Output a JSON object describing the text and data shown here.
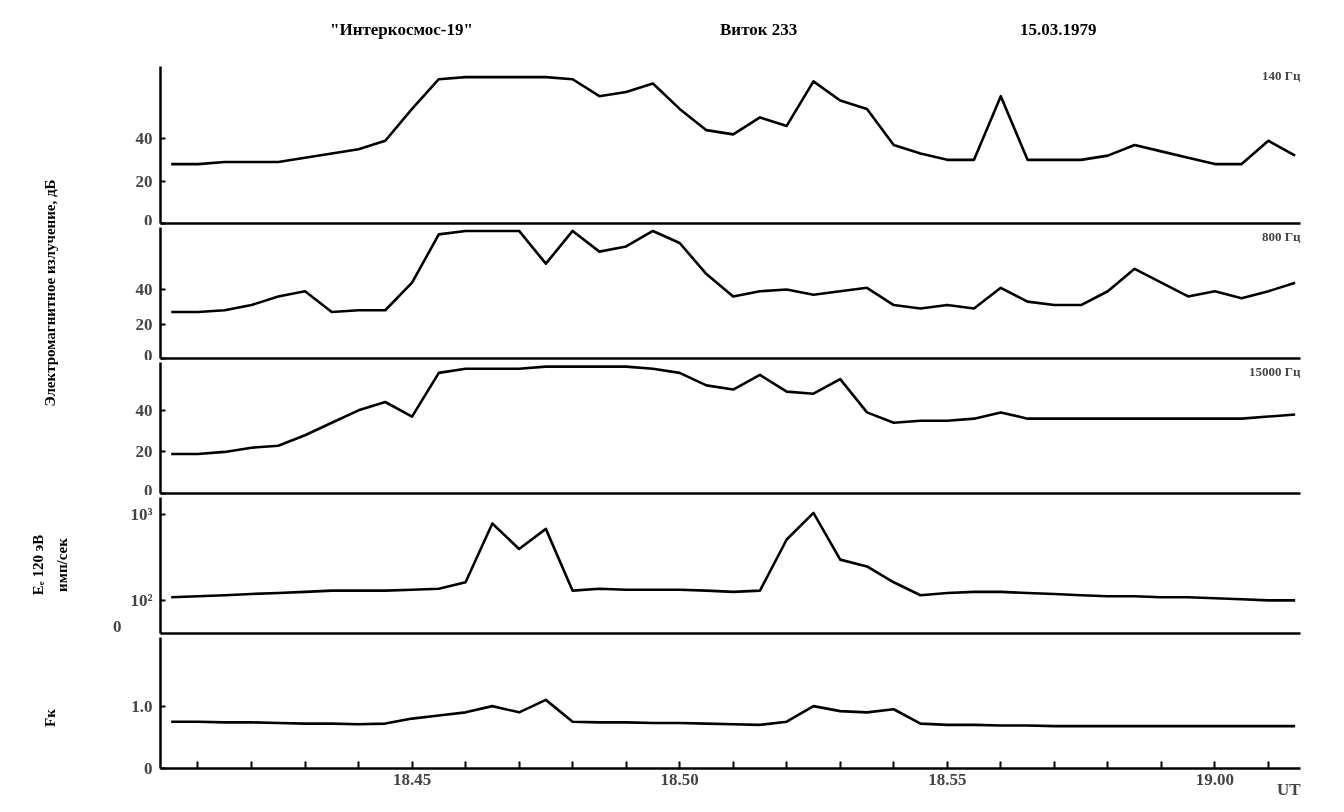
{
  "chart_data": [
    {
      "type": "line",
      "title": "\"Интеркосмос-19\"",
      "annotations": [
        "Виток 233",
        "15.03.1979"
      ],
      "tick_labels": "y",
      "x": [
        "1979-03-15T18:40:30",
        "1979-03-15T18:41",
        "1979-03-15T18:41:30",
        "1979-03-15T18:42",
        "1979-03-15T18:42:30",
        "1979-03-15T18:43",
        "1979-03-15T18:43:30",
        "1979-03-15T18:44",
        "1979-03-15T18:44:30",
        "1979-03-15T18:45",
        "1979-03-15T18:45:30",
        "1979-03-15T18:46",
        "1979-03-15T18:46:30",
        "1979-03-15T18:47",
        "1979-03-15T18:47:30",
        "1979-03-15T18:48",
        "1979-03-15T18:48:30",
        "1979-03-15T18:49",
        "1979-03-15T18:49:30",
        "1979-03-15T18:50",
        "1979-03-15T18:50:30",
        "1979-03-15T18:51",
        "1979-03-15T18:51:30",
        "1979-03-15T18:52",
        "1979-03-15T18:52:30",
        "1979-03-15T18:53",
        "1979-03-15T18:53:30",
        "1979-03-15T18:54",
        "1979-03-15T18:54:30",
        "1979-03-15T18:55",
        "1979-03-15T18:55:30",
        "1979-03-15T18:56",
        "1979-03-15T18:56:30",
        "1979-03-15T18:57",
        "1979-03-15T18:57:30",
        "1979-03-15T18:58",
        "1979-03-15T18:58:30",
        "1979-03-15T18:59",
        "1979-03-15T18:59:30",
        "1979-03-15T19:00",
        "1979-03-15T19:00:30",
        "1979-03-15T19:01",
        "1979-03-15T19:01:30"
      ],
      "xlim": [
        "1979-03-15T18:40:18",
        "1979-03-15T19:01:36"
      ],
      "ylim": [
        0,
        74
      ],
      "yticks": [
        0,
        20,
        40
      ],
      "series": [
        {
          "name": "140 Гц",
          "color": "#000000",
          "values": [
            28,
            28,
            29,
            29,
            29,
            31,
            33,
            35,
            39,
            54,
            68,
            69,
            69,
            69,
            69,
            68,
            60,
            62,
            66,
            54,
            44,
            42,
            50,
            46,
            67,
            58,
            54,
            37,
            33,
            30,
            30,
            60,
            30,
            30,
            30,
            32,
            37,
            34,
            31,
            28,
            28,
            39,
            32
          ]
        }
      ]
    },
    {
      "type": "line",
      "ylabel": "Электромагнитное излучение, дБ",
      "tick_labels": "y",
      "x": [
        "1979-03-15T18:40:30",
        "1979-03-15T18:41",
        "1979-03-15T18:41:30",
        "1979-03-15T18:42",
        "1979-03-15T18:42:30",
        "1979-03-15T18:43",
        "1979-03-15T18:43:30",
        "1979-03-15T18:44",
        "1979-03-15T18:44:30",
        "1979-03-15T18:45",
        "1979-03-15T18:45:30",
        "1979-03-15T18:46",
        "1979-03-15T18:46:30",
        "1979-03-15T18:47",
        "1979-03-15T18:47:30",
        "1979-03-15T18:48",
        "1979-03-15T18:48:30",
        "1979-03-15T18:49",
        "1979-03-15T18:49:30",
        "1979-03-15T18:50",
        "1979-03-15T18:50:30",
        "1979-03-15T18:51",
        "1979-03-15T18:51:30",
        "1979-03-15T18:52",
        "1979-03-15T18:52:30",
        "1979-03-15T18:53",
        "1979-03-15T18:53:30",
        "1979-03-15T18:54",
        "1979-03-15T18:54:30",
        "1979-03-15T18:55",
        "1979-03-15T18:55:30",
        "1979-03-15T18:56",
        "1979-03-15T18:56:30",
        "1979-03-15T18:57",
        "1979-03-15T18:57:30",
        "1979-03-15T18:58",
        "1979-03-15T18:58:30",
        "1979-03-15T18:59",
        "1979-03-15T18:59:30",
        "1979-03-15T19:00",
        "1979-03-15T19:00:30",
        "1979-03-15T19:01",
        "1979-03-15T19:01:30"
      ],
      "xlim": [
        "1979-03-15T18:40:18",
        "1979-03-15T19:01:36"
      ],
      "ylim": [
        0,
        76
      ],
      "yticks": [
        0,
        20,
        40
      ],
      "series": [
        {
          "name": "800 Гц",
          "color": "#000000",
          "values": [
            27,
            27,
            28,
            31,
            36,
            39,
            27,
            28,
            28,
            44,
            72,
            74,
            74,
            74,
            55,
            74,
            62,
            65,
            74,
            67,
            49,
            36,
            39,
            40,
            37,
            39,
            41,
            31,
            29,
            31,
            29,
            41,
            33,
            31,
            31,
            39,
            52,
            44,
            36,
            39,
            35,
            39,
            44
          ]
        }
      ]
    },
    {
      "type": "line",
      "tick_labels": "y",
      "x": [
        "1979-03-15T18:40:30",
        "1979-03-15T18:41",
        "1979-03-15T18:41:30",
        "1979-03-15T18:42",
        "1979-03-15T18:42:30",
        "1979-03-15T18:43",
        "1979-03-15T18:43:30",
        "1979-03-15T18:44",
        "1979-03-15T18:44:30",
        "1979-03-15T18:45",
        "1979-03-15T18:45:30",
        "1979-03-15T18:46",
        "1979-03-15T18:46:30",
        "1979-03-15T18:47",
        "1979-03-15T18:47:30",
        "1979-03-15T18:48",
        "1979-03-15T18:48:30",
        "1979-03-15T18:49",
        "1979-03-15T18:49:30",
        "1979-03-15T18:50",
        "1979-03-15T18:50:30",
        "1979-03-15T18:51",
        "1979-03-15T18:51:30",
        "1979-03-15T18:52",
        "1979-03-15T18:52:30",
        "1979-03-15T18:53",
        "1979-03-15T18:53:30",
        "1979-03-15T18:54",
        "1979-03-15T18:54:30",
        "1979-03-15T18:55",
        "1979-03-15T18:55:30",
        "1979-03-15T18:56",
        "1979-03-15T18:56:30",
        "1979-03-15T18:57",
        "1979-03-15T18:57:30",
        "1979-03-15T18:58",
        "1979-03-15T18:58:30",
        "1979-03-15T18:59",
        "1979-03-15T18:59:30",
        "1979-03-15T19:00",
        "1979-03-15T19:00:30",
        "1979-03-15T19:01",
        "1979-03-15T19:01:30"
      ],
      "xlim": [
        "1979-03-15T18:40:18",
        "1979-03-15T19:01:36"
      ],
      "ylim": [
        0,
        63
      ],
      "yticks": [
        0,
        20,
        40
      ],
      "series": [
        {
          "name": "15000 Гц",
          "color": "#000000",
          "values": [
            19,
            19,
            20,
            22,
            23,
            28,
            34,
            40,
            44,
            37,
            58,
            60,
            60,
            60,
            61,
            61,
            61,
            61,
            60,
            58,
            52,
            50,
            57,
            49,
            48,
            55,
            39,
            34,
            35,
            35,
            36,
            39,
            36,
            36,
            36,
            36,
            36,
            36,
            36,
            36,
            36,
            37,
            38
          ]
        }
      ]
    },
    {
      "type": "line",
      "ylabel": "Eₑ 120 эВ\nимп/сек",
      "tick_labels": "y",
      "log": "y",
      "x": [
        "1979-03-15T18:40:30",
        "1979-03-15T18:41",
        "1979-03-15T18:41:30",
        "1979-03-15T18:42",
        "1979-03-15T18:42:30",
        "1979-03-15T18:43",
        "1979-03-15T18:43:30",
        "1979-03-15T18:44",
        "1979-03-15T18:44:30",
        "1979-03-15T18:45",
        "1979-03-15T18:45:30",
        "1979-03-15T18:46",
        "1979-03-15T18:46:30",
        "1979-03-15T18:47",
        "1979-03-15T18:47:30",
        "1979-03-15T18:48",
        "1979-03-15T18:48:30",
        "1979-03-15T18:49",
        "1979-03-15T18:49:30",
        "1979-03-15T18:50",
        "1979-03-15T18:50:30",
        "1979-03-15T18:51",
        "1979-03-15T18:51:30",
        "1979-03-15T18:52",
        "1979-03-15T18:52:30",
        "1979-03-15T18:53",
        "1979-03-15T18:53:30",
        "1979-03-15T18:54",
        "1979-03-15T18:54:30",
        "1979-03-15T18:55",
        "1979-03-15T18:55:30",
        "1979-03-15T18:56",
        "1979-03-15T18:56:30",
        "1979-03-15T18:57",
        "1979-03-15T18:57:30",
        "1979-03-15T18:58",
        "1979-03-15T18:58:30",
        "1979-03-15T18:59",
        "1979-03-15T18:59:30",
        "1979-03-15T19:00",
        "1979-03-15T19:00:30",
        "1979-03-15T19:01",
        "1979-03-15T19:01:30"
      ],
      "xlim": [
        "1979-03-15T18:40:18",
        "1979-03-15T19:01:36"
      ],
      "ylim": [
        41,
        1600
      ],
      "yticks": [
        {
          "value": 100,
          "label": "10²"
        },
        {
          "value": 1000,
          "label": "10³"
        }
      ],
      "annotations": [
        "0"
      ],
      "series": [
        {
          "color": "#000000",
          "values": [
            109,
            112,
            115,
            119,
            122,
            126,
            130,
            130,
            130,
            133,
            137,
            163,
            794,
            400,
            687,
            130,
            137,
            133,
            133,
            133,
            130,
            126,
            130,
            516,
            1059,
            300,
            250,
            163,
            115,
            122,
            126,
            126,
            122,
            119,
            115,
            112,
            112,
            109,
            109,
            106,
            103,
            100,
            100
          ]
        }
      ]
    },
    {
      "type": "line",
      "ylabel": "Fк",
      "xlabel": "UT",
      "x": [
        "1979-03-15T18:40:30",
        "1979-03-15T18:41",
        "1979-03-15T18:41:30",
        "1979-03-15T18:42",
        "1979-03-15T18:42:30",
        "1979-03-15T18:43",
        "1979-03-15T18:43:30",
        "1979-03-15T18:44",
        "1979-03-15T18:44:30",
        "1979-03-15T18:45",
        "1979-03-15T18:45:30",
        "1979-03-15T18:46",
        "1979-03-15T18:46:30",
        "1979-03-15T18:47",
        "1979-03-15T18:47:30",
        "1979-03-15T18:48",
        "1979-03-15T18:48:30",
        "1979-03-15T18:49",
        "1979-03-15T18:49:30",
        "1979-03-15T18:50",
        "1979-03-15T18:50:30",
        "1979-03-15T18:51",
        "1979-03-15T18:51:30",
        "1979-03-15T18:52",
        "1979-03-15T18:52:30",
        "1979-03-15T18:53",
        "1979-03-15T18:53:30",
        "1979-03-15T18:54",
        "1979-03-15T18:54:30",
        "1979-03-15T18:55",
        "1979-03-15T18:55:30",
        "1979-03-15T18:56",
        "1979-03-15T18:56:30",
        "1979-03-15T18:57",
        "1979-03-15T18:57:30",
        "1979-03-15T18:58",
        "1979-03-15T18:58:30",
        "1979-03-15T18:59",
        "1979-03-15T18:59:30",
        "1979-03-15T19:00",
        "1979-03-15T19:00:30",
        "1979-03-15T19:01",
        "1979-03-15T19:01:30"
      ],
      "xlim": [
        "1979-03-15T18:40:18",
        "1979-03-15T19:01:36"
      ],
      "ylim": [
        0,
        2.1
      ],
      "yticks": [
        0,
        {
          "value": 1.0,
          "label": "1.0"
        }
      ],
      "xticks": [
        {
          "value": "1979-03-15T18:41",
          "label": null
        },
        {
          "value": "1979-03-15T18:42",
          "label": null
        },
        {
          "value": "1979-03-15T18:43",
          "label": null
        },
        {
          "value": "1979-03-15T18:44",
          "label": null
        },
        {
          "value": "1979-03-15T18:45",
          "label": "18.45"
        },
        {
          "value": "1979-03-15T18:46",
          "label": null
        },
        {
          "value": "1979-03-15T18:47",
          "label": null
        },
        {
          "value": "1979-03-15T18:48",
          "label": null
        },
        {
          "value": "1979-03-15T18:49",
          "label": null
        },
        {
          "value": "1979-03-15T18:50",
          "label": "18.50"
        },
        {
          "value": "1979-03-15T18:51",
          "label": null
        },
        {
          "value": "1979-03-15T18:52",
          "label": null
        },
        {
          "value": "1979-03-15T18:53",
          "label": null
        },
        {
          "value": "1979-03-15T18:54",
          "label": null
        },
        {
          "value": "1979-03-15T18:55",
          "label": "18.55"
        },
        {
          "value": "1979-03-15T18:56",
          "label": null
        },
        {
          "value": "1979-03-15T18:57",
          "label": null
        },
        {
          "value": "1979-03-15T18:58",
          "label": null
        },
        {
          "value": "1979-03-15T18:59",
          "label": null
        },
        {
          "value": "1979-03-15T19:00",
          "label": "19.00"
        },
        {
          "value": "1979-03-15T19:01",
          "label": null
        }
      ],
      "series": [
        {
          "color": "#000000",
          "values": [
            0.75,
            0.75,
            0.74,
            0.74,
            0.73,
            0.72,
            0.72,
            0.71,
            0.72,
            0.8,
            0.85,
            0.9,
            1.0,
            0.9,
            1.1,
            0.75,
            0.74,
            0.74,
            0.73,
            0.73,
            0.72,
            0.71,
            0.7,
            0.75,
            1.0,
            0.92,
            0.9,
            0.95,
            0.72,
            0.7,
            0.7,
            0.69,
            0.69,
            0.68,
            0.68,
            0.68,
            0.68,
            0.68,
            0.68,
            0.68,
            0.68,
            0.68,
            0.68
          ]
        }
      ]
    }
  ]
}
